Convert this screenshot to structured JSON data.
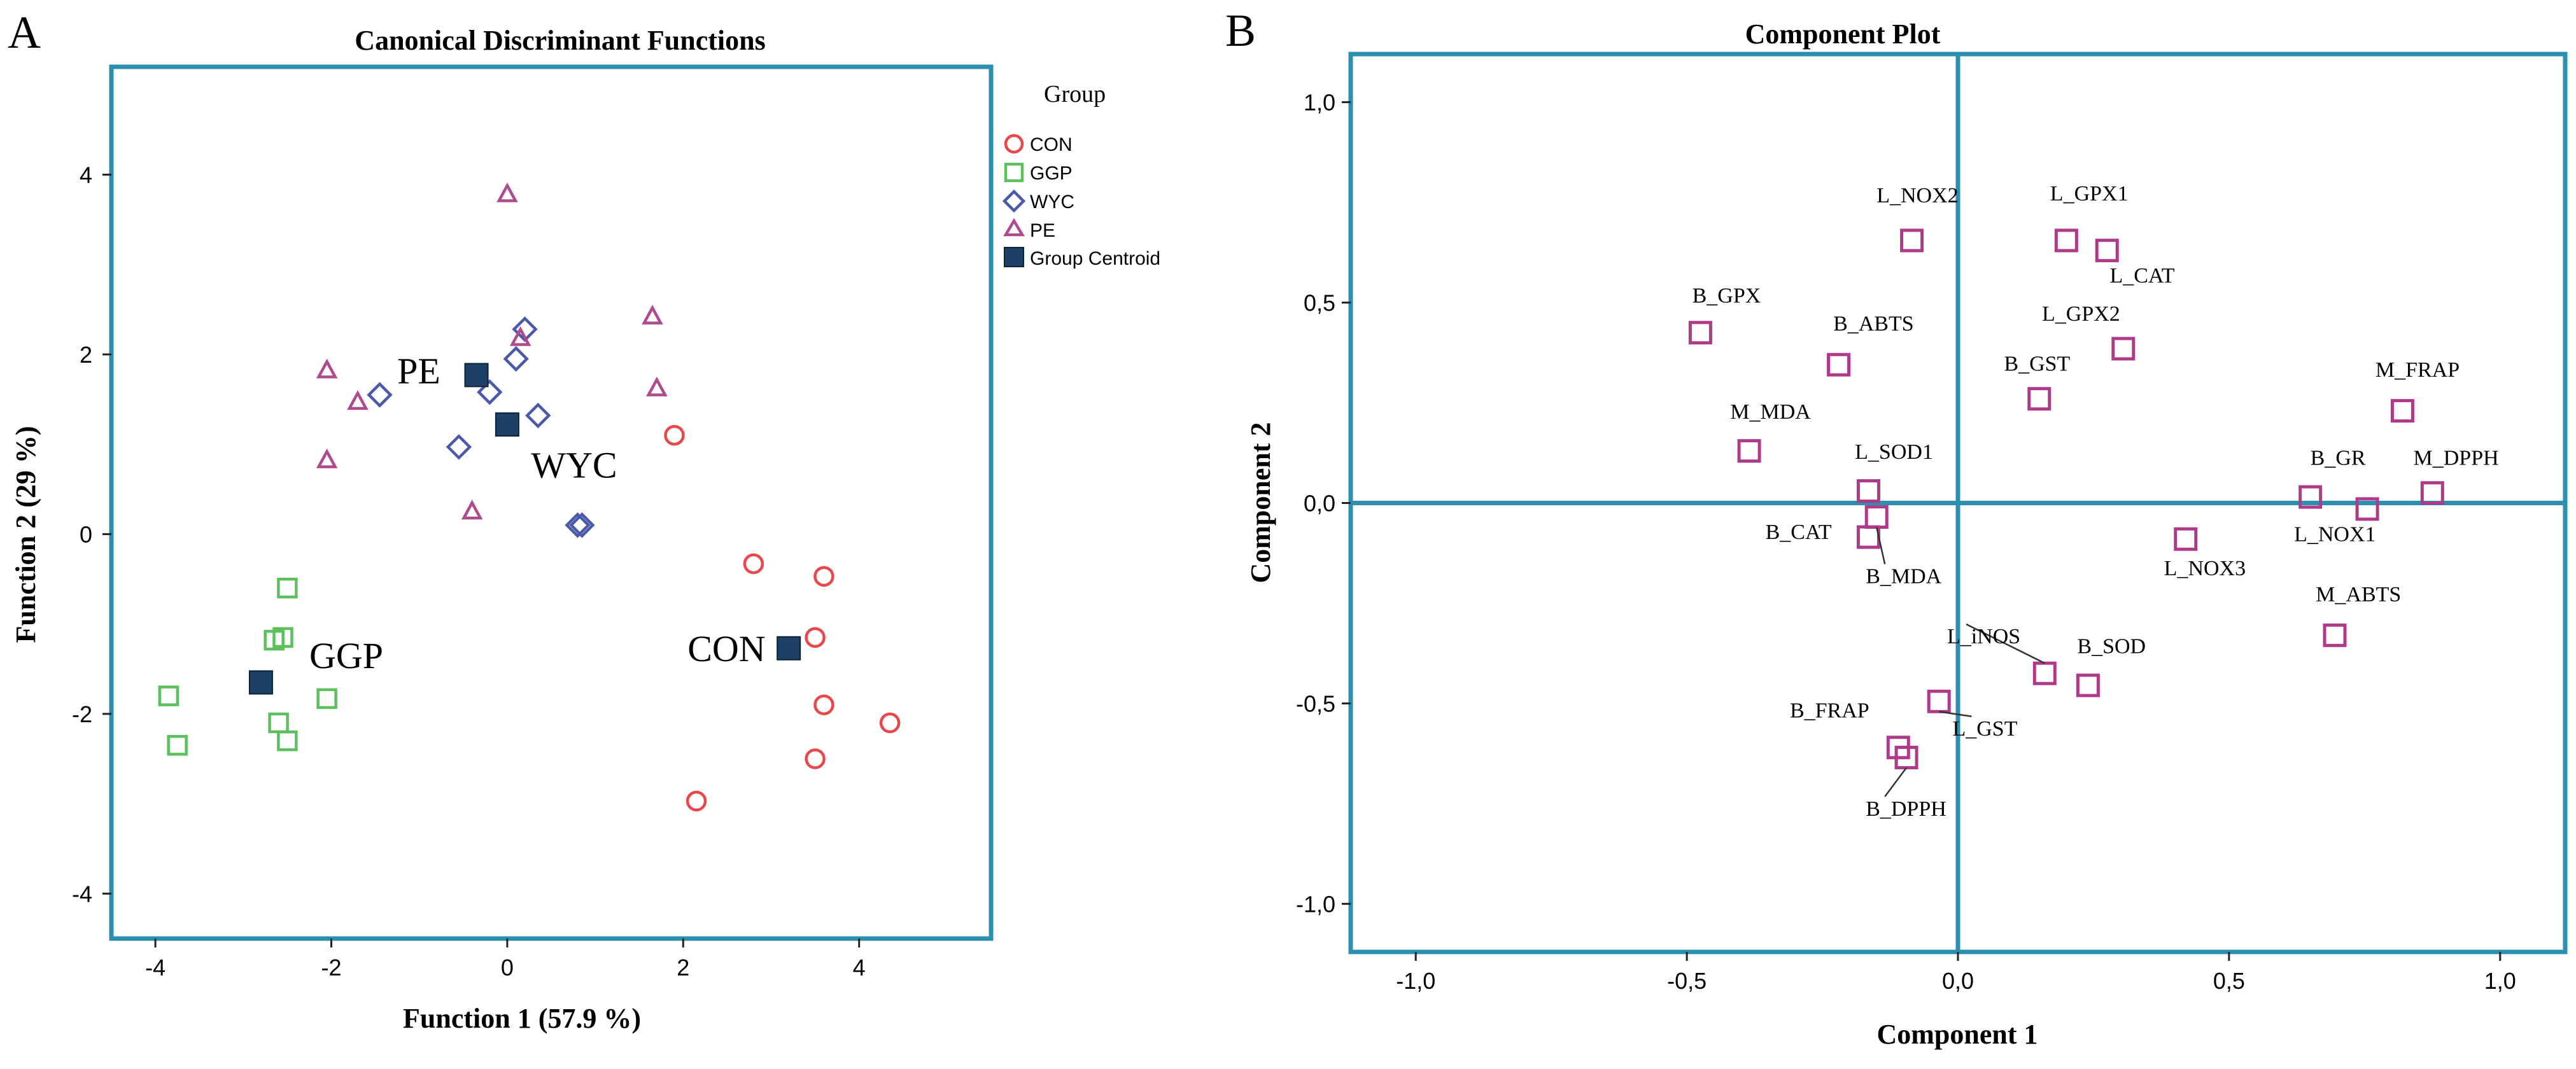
{
  "panels": {
    "left_letter": "A",
    "right_letter": "B"
  },
  "colors": {
    "frame": "#2b8faf",
    "CON": "#e8474b",
    "GGP": "#5cc05c",
    "WYC": "#4a5aa8",
    "PE": "#b04a8e",
    "centroid": "#1e3f66",
    "loading": "#b03a8a"
  },
  "chart_data": [
    {
      "type": "scatter",
      "title": "Canonical Discriminant Functions",
      "xlabel": "Function 1 (57.9 %)",
      "ylabel": "Function 2 (29 %)",
      "xlim": [
        -4.5,
        5.5
      ],
      "ylim": [
        -4.5,
        5.2
      ],
      "xticks": [
        -4,
        -2,
        0,
        2,
        4
      ],
      "yticks": [
        -4,
        -2,
        0,
        2,
        4
      ],
      "xtick_labels": [
        "-4",
        "-2",
        "0",
        "2",
        "4"
      ],
      "ytick_labels": [
        "-4",
        "-2",
        "0",
        "2",
        "4"
      ],
      "legend_title": "Group",
      "legend_position": "right, outside plot",
      "series": [
        {
          "name": "CON",
          "marker": "circle",
          "points": [
            [
              1.9,
              1.1
            ],
            [
              2.8,
              -0.33
            ],
            [
              3.6,
              -0.47
            ],
            [
              3.5,
              -1.15
            ],
            [
              3.6,
              -1.9
            ],
            [
              4.35,
              -2.1
            ],
            [
              3.5,
              -2.5
            ],
            [
              2.15,
              -2.97
            ]
          ]
        },
        {
          "name": "GGP",
          "marker": "square",
          "points": [
            [
              -2.5,
              -0.6
            ],
            [
              -2.65,
              -1.18
            ],
            [
              -2.55,
              -1.15
            ],
            [
              -3.85,
              -1.8
            ],
            [
              -2.05,
              -1.83
            ],
            [
              -2.6,
              -2.1
            ],
            [
              -2.5,
              -2.3
            ],
            [
              -3.75,
              -2.35
            ]
          ]
        },
        {
          "name": "WYC",
          "marker": "diamond",
          "points": [
            [
              0.2,
              2.28
            ],
            [
              0.1,
              1.95
            ],
            [
              -1.45,
              1.55
            ],
            [
              -0.2,
              1.58
            ],
            [
              0.35,
              1.32
            ],
            [
              -0.55,
              0.97
            ],
            [
              0.85,
              0.1
            ],
            [
              0.8,
              0.1
            ]
          ]
        },
        {
          "name": "PE",
          "marker": "triangle",
          "points": [
            [
              0.0,
              3.78
            ],
            [
              1.65,
              2.42
            ],
            [
              -2.05,
              1.82
            ],
            [
              -1.7,
              1.47
            ],
            [
              1.7,
              1.62
            ],
            [
              0.15,
              2.18
            ],
            [
              -2.05,
              0.82
            ],
            [
              -0.4,
              0.25
            ]
          ]
        },
        {
          "name": "Group Centroid",
          "marker": "filled-square",
          "points": [
            [
              3.2,
              -1.27
            ],
            [
              -2.8,
              -1.65
            ],
            [
              0.0,
              1.22
            ],
            [
              -0.35,
              1.77
            ]
          ]
        }
      ],
      "annotations": [
        {
          "text": "CON",
          "x": 2.05,
          "y": -1.27
        },
        {
          "text": "GGP",
          "x": -2.25,
          "y": -1.35
        },
        {
          "text": "WYC",
          "x": 0.27,
          "y": 0.77
        },
        {
          "text": "PE",
          "x": -1.25,
          "y": 1.82
        }
      ]
    },
    {
      "type": "scatter",
      "title": "Component Plot",
      "xlabel": "Component 1",
      "ylabel": "Component 2",
      "xlim": [
        -1.12,
        1.12
      ],
      "ylim": [
        -1.12,
        1.12
      ],
      "xticks": [
        -1.0,
        -0.5,
        0.0,
        0.5,
        1.0
      ],
      "yticks": [
        -1.0,
        -0.5,
        0.0,
        0.5,
        1.0
      ],
      "xtick_labels": [
        "-1,0",
        "-0,5",
        "0,0",
        "0,5",
        "1,0"
      ],
      "ytick_labels": [
        "-1,0",
        "-0,5",
        "0,0",
        "0,5",
        "1,0"
      ],
      "reference_lines": {
        "x": 0,
        "y": 0
      },
      "points": [
        {
          "label": "L_NOX2",
          "x": -0.085,
          "y": 0.655,
          "lx": -0.15,
          "ly": 0.75,
          "leader": false
        },
        {
          "label": "L_GPX1",
          "x": 0.2,
          "y": 0.655,
          "lx": 0.17,
          "ly": 0.755,
          "leader": false
        },
        {
          "label": "L_CAT",
          "x": 0.275,
          "y": 0.63,
          "lx": 0.28,
          "ly": 0.55,
          "leader": false
        },
        {
          "label": "B_GPX",
          "x": -0.475,
          "y": 0.425,
          "lx": -0.49,
          "ly": 0.5,
          "leader": false
        },
        {
          "label": "B_ABTS",
          "x": -0.22,
          "y": 0.345,
          "lx": -0.23,
          "ly": 0.43,
          "leader": false
        },
        {
          "label": "L_GPX2",
          "x": 0.305,
          "y": 0.385,
          "lx": 0.155,
          "ly": 0.455,
          "leader": false
        },
        {
          "label": "B_GST",
          "x": 0.15,
          "y": 0.26,
          "lx": 0.085,
          "ly": 0.33,
          "leader": false
        },
        {
          "label": "M_FRAP",
          "x": 0.82,
          "y": 0.23,
          "lx": 0.77,
          "ly": 0.315,
          "leader": false
        },
        {
          "label": "M_MDA",
          "x": -0.385,
          "y": 0.13,
          "lx": -0.42,
          "ly": 0.21,
          "leader": false
        },
        {
          "label": "L_SOD1",
          "x": -0.165,
          "y": 0.03,
          "lx": -0.19,
          "ly": 0.11,
          "leader": false
        },
        {
          "label": "B_GR",
          "x": 0.65,
          "y": 0.015,
          "lx": 0.65,
          "ly": 0.095,
          "leader": false
        },
        {
          "label": "M_DPPH",
          "x": 0.875,
          "y": 0.025,
          "lx": 0.84,
          "ly": 0.095,
          "leader": false
        },
        {
          "label": "L_NOX1",
          "x": 0.755,
          "y": -0.015,
          "lx": 0.62,
          "ly": -0.095,
          "leader": false
        },
        {
          "label": "B_CAT",
          "x": -0.165,
          "y": -0.085,
          "lx": -0.355,
          "ly": -0.09,
          "leader": false
        },
        {
          "label": "B_MDA",
          "x": -0.15,
          "y": -0.035,
          "lx": -0.17,
          "ly": -0.2,
          "leader": true
        },
        {
          "label": "L_NOX3",
          "x": 0.42,
          "y": -0.09,
          "lx": 0.38,
          "ly": -0.18,
          "leader": false
        },
        {
          "label": "M_ABTS",
          "x": 0.695,
          "y": -0.33,
          "lx": 0.66,
          "ly": -0.245,
          "leader": false
        },
        {
          "label": "L_iNOS",
          "x": 0.16,
          "y": -0.425,
          "lx": -0.02,
          "ly": -0.35,
          "leader": true
        },
        {
          "label": "B_SOD",
          "x": 0.24,
          "y": -0.455,
          "lx": 0.22,
          "ly": -0.375,
          "leader": false
        },
        {
          "label": "L_GST",
          "x": -0.035,
          "y": -0.495,
          "lx": -0.01,
          "ly": -0.58,
          "leader": true
        },
        {
          "label": "B_FRAP",
          "x": -0.11,
          "y": -0.61,
          "lx": -0.31,
          "ly": -0.535,
          "leader": false
        },
        {
          "label": "B_DPPH",
          "x": -0.095,
          "y": -0.635,
          "lx": -0.17,
          "ly": -0.78,
          "leader": true
        }
      ]
    }
  ]
}
